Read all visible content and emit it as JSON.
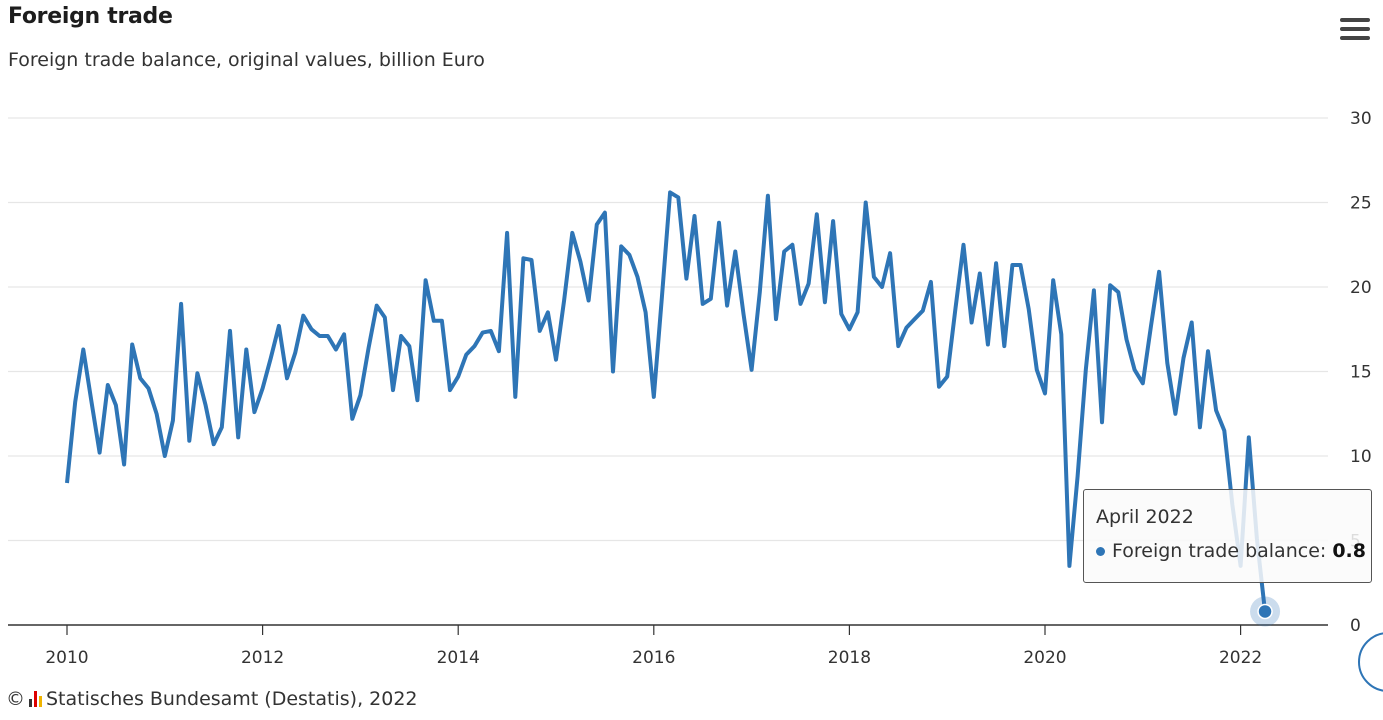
{
  "header": {
    "title": "Foreign trade",
    "subtitle": "Foreign trade balance, original values, billion Euro"
  },
  "credit": {
    "text": "Statisches Bundesamt (Destatis), 2022",
    "copyright": "©"
  },
  "tooltip": {
    "title": "April 2022",
    "series_label": "Foreign trade balance:",
    "value": "0.8"
  },
  "colors": {
    "line": "#2e75b6",
    "grid": "#e6e6e6",
    "axis": "#333333"
  },
  "icons": {
    "menu": "hamburger-menu-icon"
  },
  "chart_data": {
    "type": "line",
    "title": "Foreign trade",
    "subtitle": "Foreign trade balance, original values, billion Euro",
    "x_start": "2010-01",
    "x_frequency": "monthly",
    "x_ticks": [
      "2010",
      "2012",
      "2014",
      "2016",
      "2018",
      "2020",
      "2022"
    ],
    "y_ticks": [
      0,
      5,
      10,
      15,
      20,
      25,
      30
    ],
    "ylim": [
      0,
      30
    ],
    "y_axis_side": "right",
    "grid": true,
    "legend": "none",
    "series": [
      {
        "name": "Foreign trade balance",
        "values": [
          8.4,
          13.2,
          16.3,
          13.2,
          10.2,
          14.2,
          13.0,
          9.5,
          16.6,
          14.6,
          14.0,
          12.5,
          10.0,
          12.1,
          19.0,
          10.9,
          14.9,
          13.0,
          10.7,
          11.7,
          17.4,
          11.1,
          16.3,
          12.6,
          14.0,
          15.8,
          17.7,
          14.6,
          16.1,
          18.3,
          17.5,
          17.1,
          17.1,
          16.3,
          17.2,
          12.2,
          13.6,
          16.4,
          18.9,
          18.2,
          13.9,
          17.1,
          16.5,
          13.3,
          20.4,
          18.0,
          18.0,
          13.9,
          14.7,
          16.0,
          16.5,
          17.3,
          17.4,
          16.2,
          23.2,
          13.5,
          21.7,
          21.6,
          17.4,
          18.5,
          15.7,
          19.2,
          23.2,
          21.5,
          19.2,
          23.7,
          24.4,
          15.0,
          22.4,
          21.9,
          20.6,
          18.5,
          13.5,
          19.4,
          25.6,
          25.3,
          20.5,
          24.2,
          19.0,
          19.3,
          23.8,
          18.9,
          22.1,
          18.4,
          15.1,
          19.7,
          25.4,
          18.1,
          22.1,
          22.5,
          19.0,
          20.2,
          24.3,
          19.1,
          23.9,
          18.4,
          17.5,
          18.5,
          25.0,
          20.6,
          20.0,
          22.0,
          16.5,
          17.6,
          18.1,
          18.6,
          20.3,
          14.1,
          14.7,
          18.7,
          22.5,
          17.9,
          20.8,
          16.6,
          21.4,
          16.5,
          21.3,
          21.3,
          18.7,
          15.1,
          13.7,
          20.4,
          17.2,
          3.5,
          8.8,
          15.1,
          19.8,
          12.0,
          20.1,
          19.7,
          16.9,
          15.1,
          14.3,
          17.7,
          20.9,
          15.5,
          12.5,
          15.8,
          17.9,
          11.7,
          16.2,
          12.7,
          11.5,
          7.1,
          3.5,
          11.1,
          5.1,
          0.8
        ]
      }
    ],
    "highlight": {
      "x": "2022-04",
      "value": 0.8
    }
  }
}
